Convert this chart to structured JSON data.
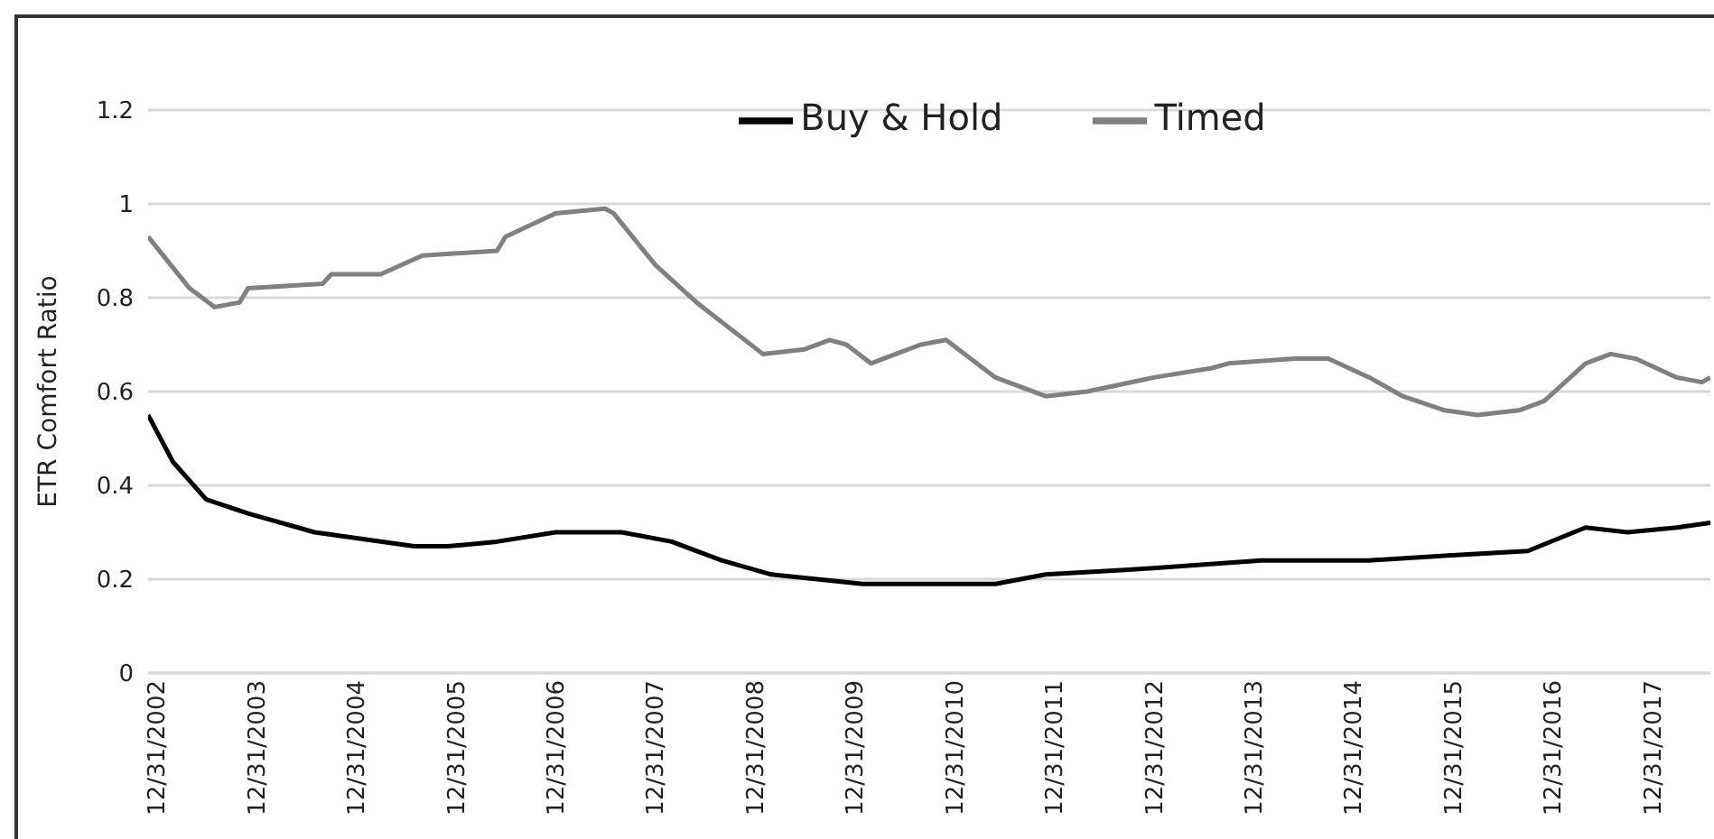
{
  "chart_data": {
    "type": "line",
    "ylabel": "ETR Comfort Ratio",
    "xlim": [
      "2002-12-31",
      "2018-09"
    ],
    "xticks": [
      {
        "value": "2002-12-31",
        "label": "12/31/2002"
      },
      {
        "value": "2003-12-31",
        "label": "12/31/2003"
      },
      {
        "value": "2004-12-31",
        "label": "12/31/2004"
      },
      {
        "value": "2005-12-31",
        "label": "12/31/2005"
      },
      {
        "value": "2006-12-31",
        "label": "12/31/2006"
      },
      {
        "value": "2007-12-31",
        "label": "12/31/2007"
      },
      {
        "value": "2008-12-31",
        "label": "12/31/2008"
      },
      {
        "value": "2009-12-31",
        "label": "12/31/2009"
      },
      {
        "value": "2010-12-31",
        "label": "12/31/2010"
      },
      {
        "value": "2011-12-31",
        "label": "12/31/2011"
      },
      {
        "value": "2012-12-31",
        "label": "12/31/2012"
      },
      {
        "value": "2013-12-31",
        "label": "12/31/2013"
      },
      {
        "value": "2014-12-31",
        "label": "12/31/2014"
      },
      {
        "value": "2015-12-31",
        "label": "12/31/2015"
      },
      {
        "value": "2016-12-31",
        "label": "12/31/2016"
      },
      {
        "value": "2017-12-31",
        "label": "12/31/2017"
      }
    ],
    "ylim": [
      0,
      1.2
    ],
    "yticks": [
      0,
      0.2,
      0.4,
      0.6,
      0.8,
      1,
      1.2
    ],
    "grid": "y",
    "legend": "top",
    "marker": "none",
    "line_style": "solid",
    "series": [
      {
        "name": "Timed",
        "color": "#808080",
        "x": [
          "2002-12-31",
          "2003-06",
          "2003-09",
          "2003-12",
          "2004-01",
          "2004-10",
          "2004-11",
          "2005-05",
          "2005-10",
          "2006-07",
          "2006-08",
          "2007-02",
          "2007-08",
          "2007-09",
          "2008-02",
          "2008-07",
          "2009-03",
          "2009-08",
          "2009-11",
          "2010-01",
          "2010-04",
          "2010-07",
          "2010-10",
          "2011-01",
          "2011-07",
          "2012-01",
          "2012-06",
          "2013-02",
          "2013-09",
          "2013-11",
          "2014-07",
          "2014-11",
          "2015-04",
          "2015-08",
          "2016-01",
          "2016-05",
          "2016-10",
          "2017-01",
          "2017-06",
          "2017-09",
          "2017-12",
          "2018-05",
          "2018-08",
          "2018-09"
        ],
        "values": [
          0.93,
          0.82,
          0.78,
          0.79,
          0.82,
          0.83,
          0.85,
          0.85,
          0.89,
          0.9,
          0.93,
          0.98,
          0.99,
          0.98,
          0.87,
          0.79,
          0.68,
          0.69,
          0.71,
          0.7,
          0.66,
          0.68,
          0.7,
          0.71,
          0.63,
          0.59,
          0.6,
          0.63,
          0.65,
          0.66,
          0.67,
          0.67,
          0.63,
          0.59,
          0.56,
          0.55,
          0.56,
          0.58,
          0.66,
          0.68,
          0.67,
          0.63,
          0.62,
          0.63
        ]
      },
      {
        "name": "Buy & Hold",
        "color": "#000000",
        "x": [
          "2002-12-31",
          "2003-04",
          "2003-08",
          "2004-01",
          "2004-09",
          "2005-09",
          "2006-01",
          "2006-07",
          "2007-02",
          "2007-10",
          "2008-04",
          "2008-10",
          "2009-04",
          "2010-03",
          "2011-07",
          "2012-01",
          "2012-11",
          "2014-03",
          "2015-04",
          "2016-01",
          "2016-11",
          "2017-06",
          "2017-11",
          "2018-05",
          "2018-09"
        ],
        "values": [
          0.55,
          0.45,
          0.37,
          0.34,
          0.3,
          0.27,
          0.27,
          0.28,
          0.3,
          0.3,
          0.28,
          0.24,
          0.21,
          0.19,
          0.19,
          0.21,
          0.22,
          0.24,
          0.24,
          0.25,
          0.26,
          0.31,
          0.3,
          0.31,
          0.32
        ]
      }
    ]
  }
}
